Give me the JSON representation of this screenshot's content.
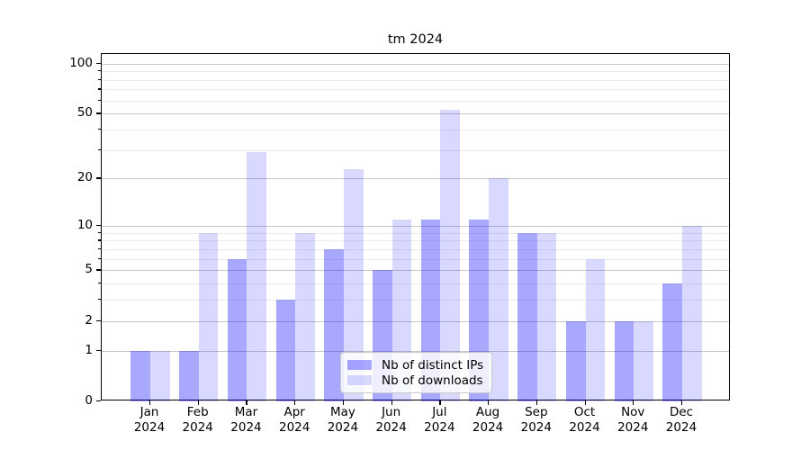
{
  "title": "tm 2024",
  "chart_data": {
    "type": "bar",
    "title": "tm 2024",
    "months": [
      "Jan",
      "Feb",
      "Mar",
      "Apr",
      "May",
      "Jun",
      "Jul",
      "Aug",
      "Sep",
      "Oct",
      "Nov",
      "Dec"
    ],
    "year": "2024",
    "categories": [
      "Jan 2024",
      "Feb 2024",
      "Mar 2024",
      "Apr 2024",
      "May 2024",
      "Jun 2024",
      "Jul 2024",
      "Aug 2024",
      "Sep 2024",
      "Oct 2024",
      "Nov 2024",
      "Dec 2024"
    ],
    "series": [
      {
        "name": "Nb of distinct IPs",
        "color": "rgba(0,0,255,0.34)",
        "values": [
          1,
          1,
          6,
          3,
          7,
          5,
          11,
          11,
          9,
          2,
          2,
          4
        ]
      },
      {
        "name": "Nb of downloads",
        "color": "rgba(0,0,255,0.15)",
        "values": [
          1,
          9,
          29,
          9,
          23,
          11,
          53,
          20,
          9,
          6,
          2,
          10
        ]
      }
    ],
    "xlabel": "",
    "ylabel": "",
    "yscale": "log1p",
    "ylim": [
      0,
      115
    ],
    "y_ticks": [
      0,
      1,
      2,
      5,
      10,
      20,
      50,
      100
    ],
    "y_minor_ticks": [
      3,
      4,
      6,
      7,
      8,
      9,
      30,
      40,
      60,
      70,
      80,
      90
    ],
    "grid": true,
    "legend_position": "lower center",
    "colors": {
      "grid_major": "#c8c8c8",
      "grid_minor": "#ebebeb",
      "spine": "#000000",
      "background": "#ffffff"
    }
  }
}
